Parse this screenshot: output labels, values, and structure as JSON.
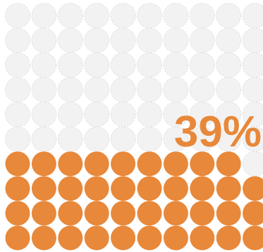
{
  "chart_data": {
    "type": "waffle",
    "values": [
      39
    ],
    "value_labels": [
      "39%"
    ],
    "color": "#e8883a"
  }
}
